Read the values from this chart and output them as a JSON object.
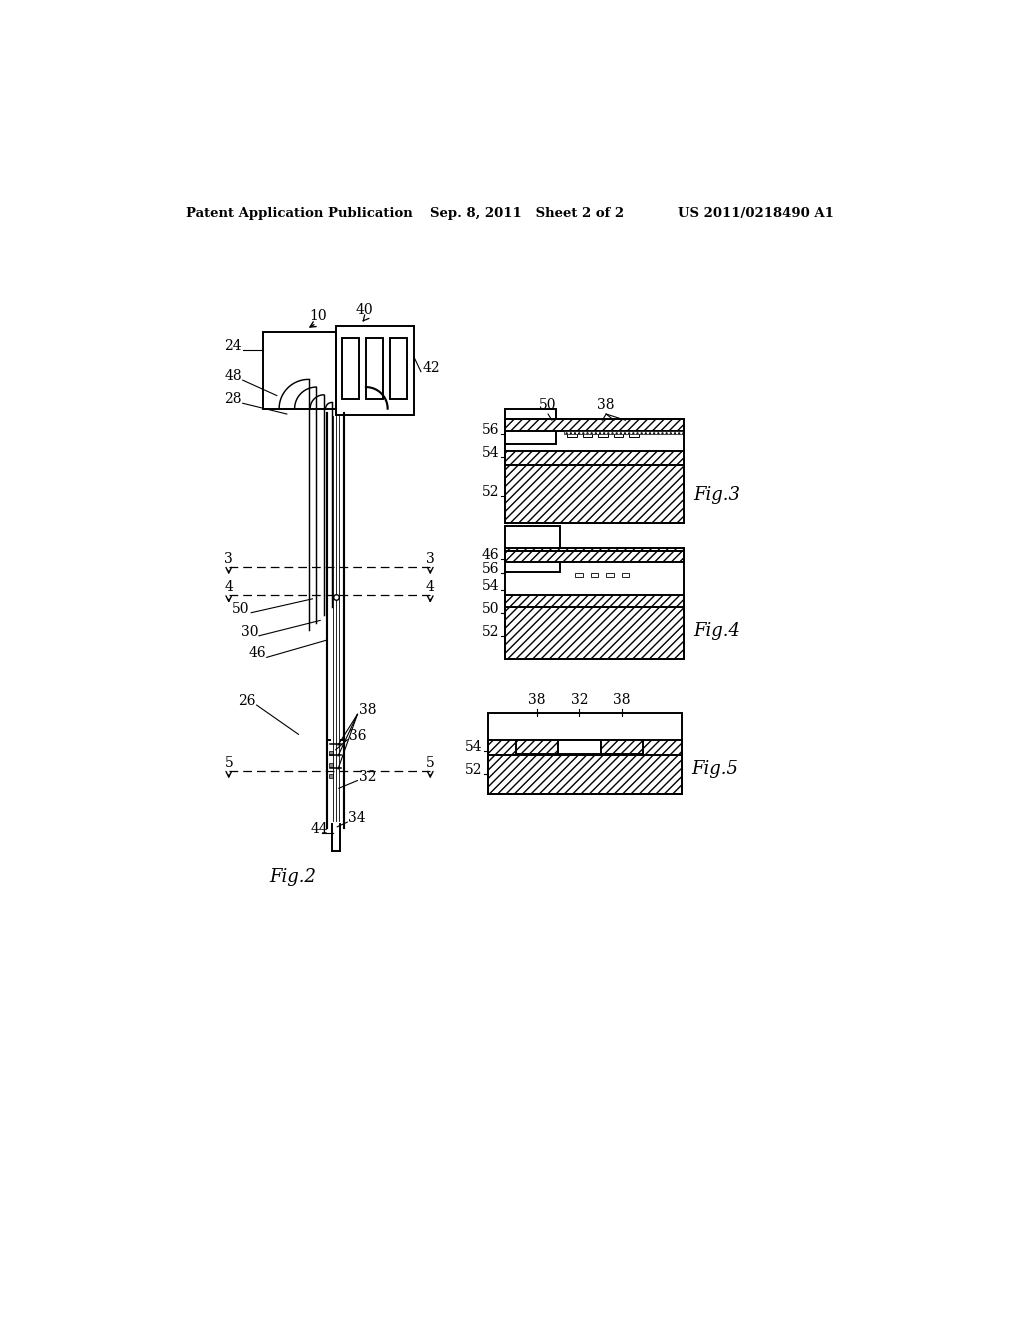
{
  "bg_color": "#ffffff",
  "header_left": "Patent Application Publication",
  "header_center": "Sep. 8, 2011   Sheet 2 of 2",
  "header_right": "US 2011/0218490 A1",
  "fig2_label": "Fig.2",
  "fig3_label": "Fig.3",
  "fig4_label": "Fig.4",
  "fig5_label": "Fig.5",
  "black": "#000000",
  "lw": 1.4,
  "fs_label": 10,
  "fs_fig": 13
}
